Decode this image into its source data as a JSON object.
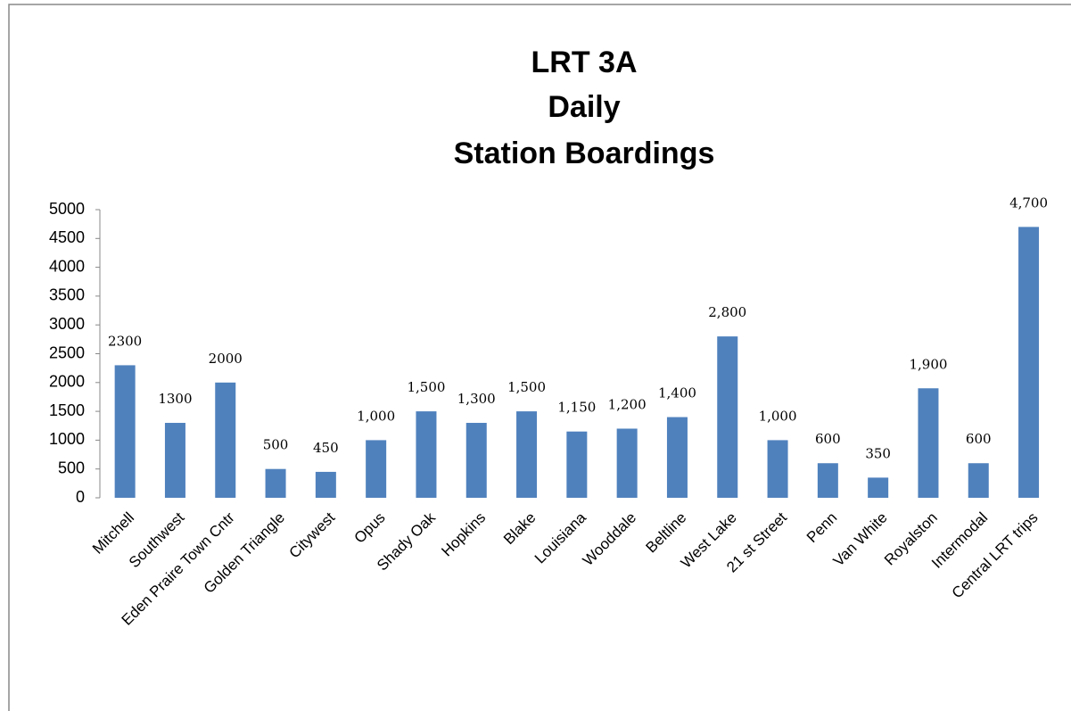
{
  "chart_data": {
    "type": "bar",
    "title": [
      "LRT 3A",
      "Daily",
      "Station Boardings"
    ],
    "categories": [
      "Mitchell",
      "Southwest",
      "Eden Praire Town Cntr",
      "Golden Triangle",
      "Citywest",
      "Opus",
      "Shady Oak",
      "Hopkins",
      "Blake",
      "Louisiana",
      "Wooddale",
      "Beltline",
      "West Lake",
      "21 st Street",
      "Penn",
      "Van White",
      "Royalston",
      "Intermodal",
      "Central LRT trips"
    ],
    "values": [
      2300,
      1300,
      2000,
      500,
      450,
      1000,
      1500,
      1300,
      1500,
      1150,
      1200,
      1400,
      2800,
      1000,
      600,
      350,
      1900,
      600,
      4700
    ],
    "value_labels": [
      "2300",
      "1300",
      "2000",
      "500",
      "450",
      "1,000",
      "1,500",
      "1,300",
      "1,500",
      "1,150",
      "1,200",
      "1,400",
      "2,800",
      "1,000",
      "600",
      "350",
      "1,900",
      "600",
      "4,700"
    ],
    "color": "#4f81bd",
    "ylim": [
      0,
      5000
    ],
    "yticks": [
      0,
      500,
      1000,
      1500,
      2000,
      2500,
      3000,
      3500,
      4000,
      4500,
      5000
    ],
    "grid": false
  }
}
